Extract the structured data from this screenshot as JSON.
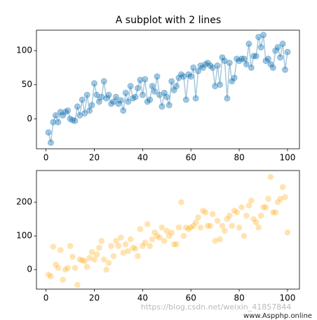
{
  "chart_data": [
    {
      "type": "line",
      "title": "A subplot with 2 lines",
      "x": [
        1,
        2,
        3,
        4,
        5,
        6,
        7,
        8,
        9,
        10,
        11,
        12,
        13,
        14,
        15,
        16,
        17,
        18,
        19,
        20,
        21,
        22,
        23,
        24,
        25,
        26,
        27,
        28,
        29,
        30,
        31,
        32,
        33,
        34,
        35,
        36,
        37,
        38,
        39,
        40,
        41,
        42,
        43,
        44,
        45,
        46,
        47,
        48,
        49,
        50,
        51,
        52,
        53,
        54,
        55,
        56,
        57,
        58,
        59,
        60,
        61,
        62,
        63,
        64,
        65,
        66,
        67,
        68,
        69,
        70,
        71,
        72,
        73,
        74,
        75,
        76,
        77,
        78,
        79,
        80,
        81,
        82,
        83,
        84,
        85,
        86,
        87,
        88,
        89,
        90,
        91,
        92,
        93,
        94,
        95,
        96,
        97,
        98,
        99,
        100
      ],
      "values": [
        -20,
        -35,
        -5,
        5,
        -5,
        10,
        5,
        10,
        12,
        0,
        -2,
        -3,
        18,
        5,
        28,
        8,
        35,
        12,
        20,
        52,
        35,
        25,
        32,
        55,
        30,
        35,
        22,
        25,
        32,
        22,
        27,
        12,
        38,
        25,
        48,
        30,
        32,
        45,
        57,
        35,
        58,
        25,
        28,
        48,
        40,
        62,
        35,
        18,
        38,
        32,
        20,
        55,
        42,
        48,
        60,
        65,
        62,
        28,
        65,
        62,
        75,
        30,
        70,
        78,
        75,
        80,
        82,
        78,
        75,
        48,
        78,
        50,
        90,
        85,
        30,
        82,
        55,
        60,
        88,
        85,
        88,
        88,
        80,
        110,
        75,
        92,
        92,
        120,
        105,
        123,
        85,
        88,
        80,
        75,
        100,
        105,
        90,
        110,
        72,
        98
      ],
      "color": "#1f77b4",
      "xlim": [
        -3.95,
        104.95
      ],
      "xticks": [
        0,
        20,
        40,
        60,
        80,
        100
      ],
      "ylim": [
        -44,
        130
      ],
      "yticks": [
        0,
        50,
        100
      ]
    },
    {
      "type": "scatter",
      "x": [
        1,
        2,
        3,
        4,
        5,
        6,
        7,
        8,
        9,
        10,
        11,
        12,
        13,
        14,
        15,
        16,
        17,
        18,
        19,
        20,
        21,
        22,
        23,
        24,
        25,
        26,
        27,
        28,
        29,
        30,
        31,
        32,
        33,
        34,
        35,
        36,
        37,
        38,
        39,
        40,
        41,
        42,
        43,
        44,
        45,
        46,
        47,
        48,
        49,
        50,
        51,
        52,
        53,
        54,
        55,
        56,
        57,
        58,
        59,
        60,
        61,
        62,
        63,
        64,
        65,
        66,
        67,
        68,
        69,
        70,
        71,
        72,
        73,
        74,
        75,
        76,
        77,
        78,
        79,
        80,
        81,
        82,
        83,
        84,
        85,
        86,
        87,
        88,
        89,
        90,
        91,
        92,
        93,
        94,
        95,
        96,
        97,
        98,
        99,
        100
      ],
      "values": [
        -15,
        -20,
        68,
        15,
        5,
        58,
        -30,
        0,
        5,
        70,
        38,
        5,
        -45,
        30,
        28,
        25,
        8,
        35,
        52,
        30,
        45,
        65,
        85,
        30,
        0,
        20,
        70,
        40,
        85,
        70,
        95,
        50,
        75,
        55,
        90,
        65,
        62,
        40,
        120,
        70,
        80,
        135,
        70,
        90,
        110,
        100,
        95,
        125,
        85,
        115,
        100,
        110,
        75,
        75,
        125,
        200,
        100,
        125,
        120,
        125,
        130,
        140,
        155,
        125,
        175,
        170,
        130,
        130,
        165,
        85,
        145,
        90,
        130,
        115,
        150,
        160,
        130,
        175,
        170,
        125,
        185,
        100,
        160,
        190,
        205,
        150,
        140,
        125,
        160,
        185,
        185,
        210,
        275,
        170,
        170,
        200,
        210,
        245,
        215,
        110
      ],
      "color": "#ffa500",
      "xlim": [
        -3.95,
        104.95
      ],
      "xticks": [
        0,
        20,
        40,
        60,
        80,
        100
      ],
      "ylim": [
        -58,
        294
      ],
      "yticks": [
        0,
        100,
        200
      ],
      "annotations": [
        "https://blog.csdn.net/weixin_41857844",
        "www.Aspphp.online"
      ]
    }
  ]
}
